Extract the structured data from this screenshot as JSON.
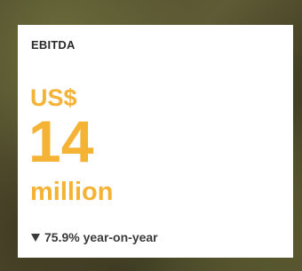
{
  "card": {
    "label": "EBITDA",
    "currency": "US$",
    "value": 14,
    "unit": "million",
    "change": "75.9% year-on-year"
  }
}
